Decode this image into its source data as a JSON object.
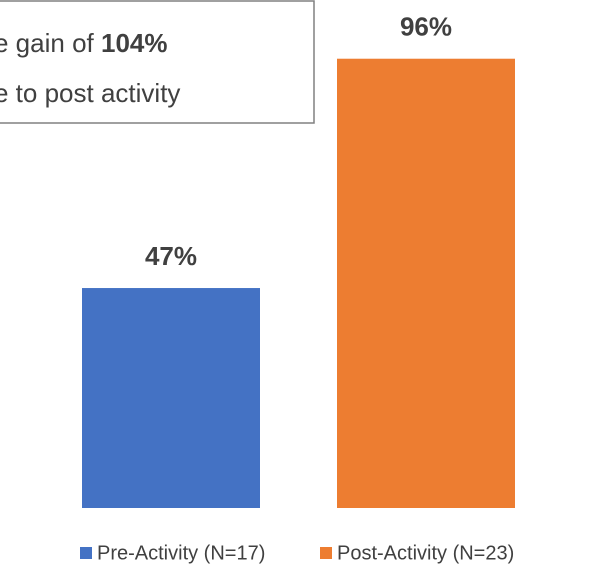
{
  "chart_data": {
    "type": "bar",
    "annotation": {
      "line1": "e gain of ",
      "highlight": "104%",
      "line2": "e to post activity"
    },
    "series": [
      {
        "name": "Pre-Activity (N=17)",
        "color": "#4472c4",
        "values": [
          47
        ],
        "value_labels": [
          "47%"
        ]
      },
      {
        "name": "Post-Activity (N=23)",
        "color": "#ed7d31",
        "values": [
          96
        ],
        "value_labels": [
          "96%"
        ]
      }
    ],
    "ylim": [
      0,
      100
    ]
  }
}
